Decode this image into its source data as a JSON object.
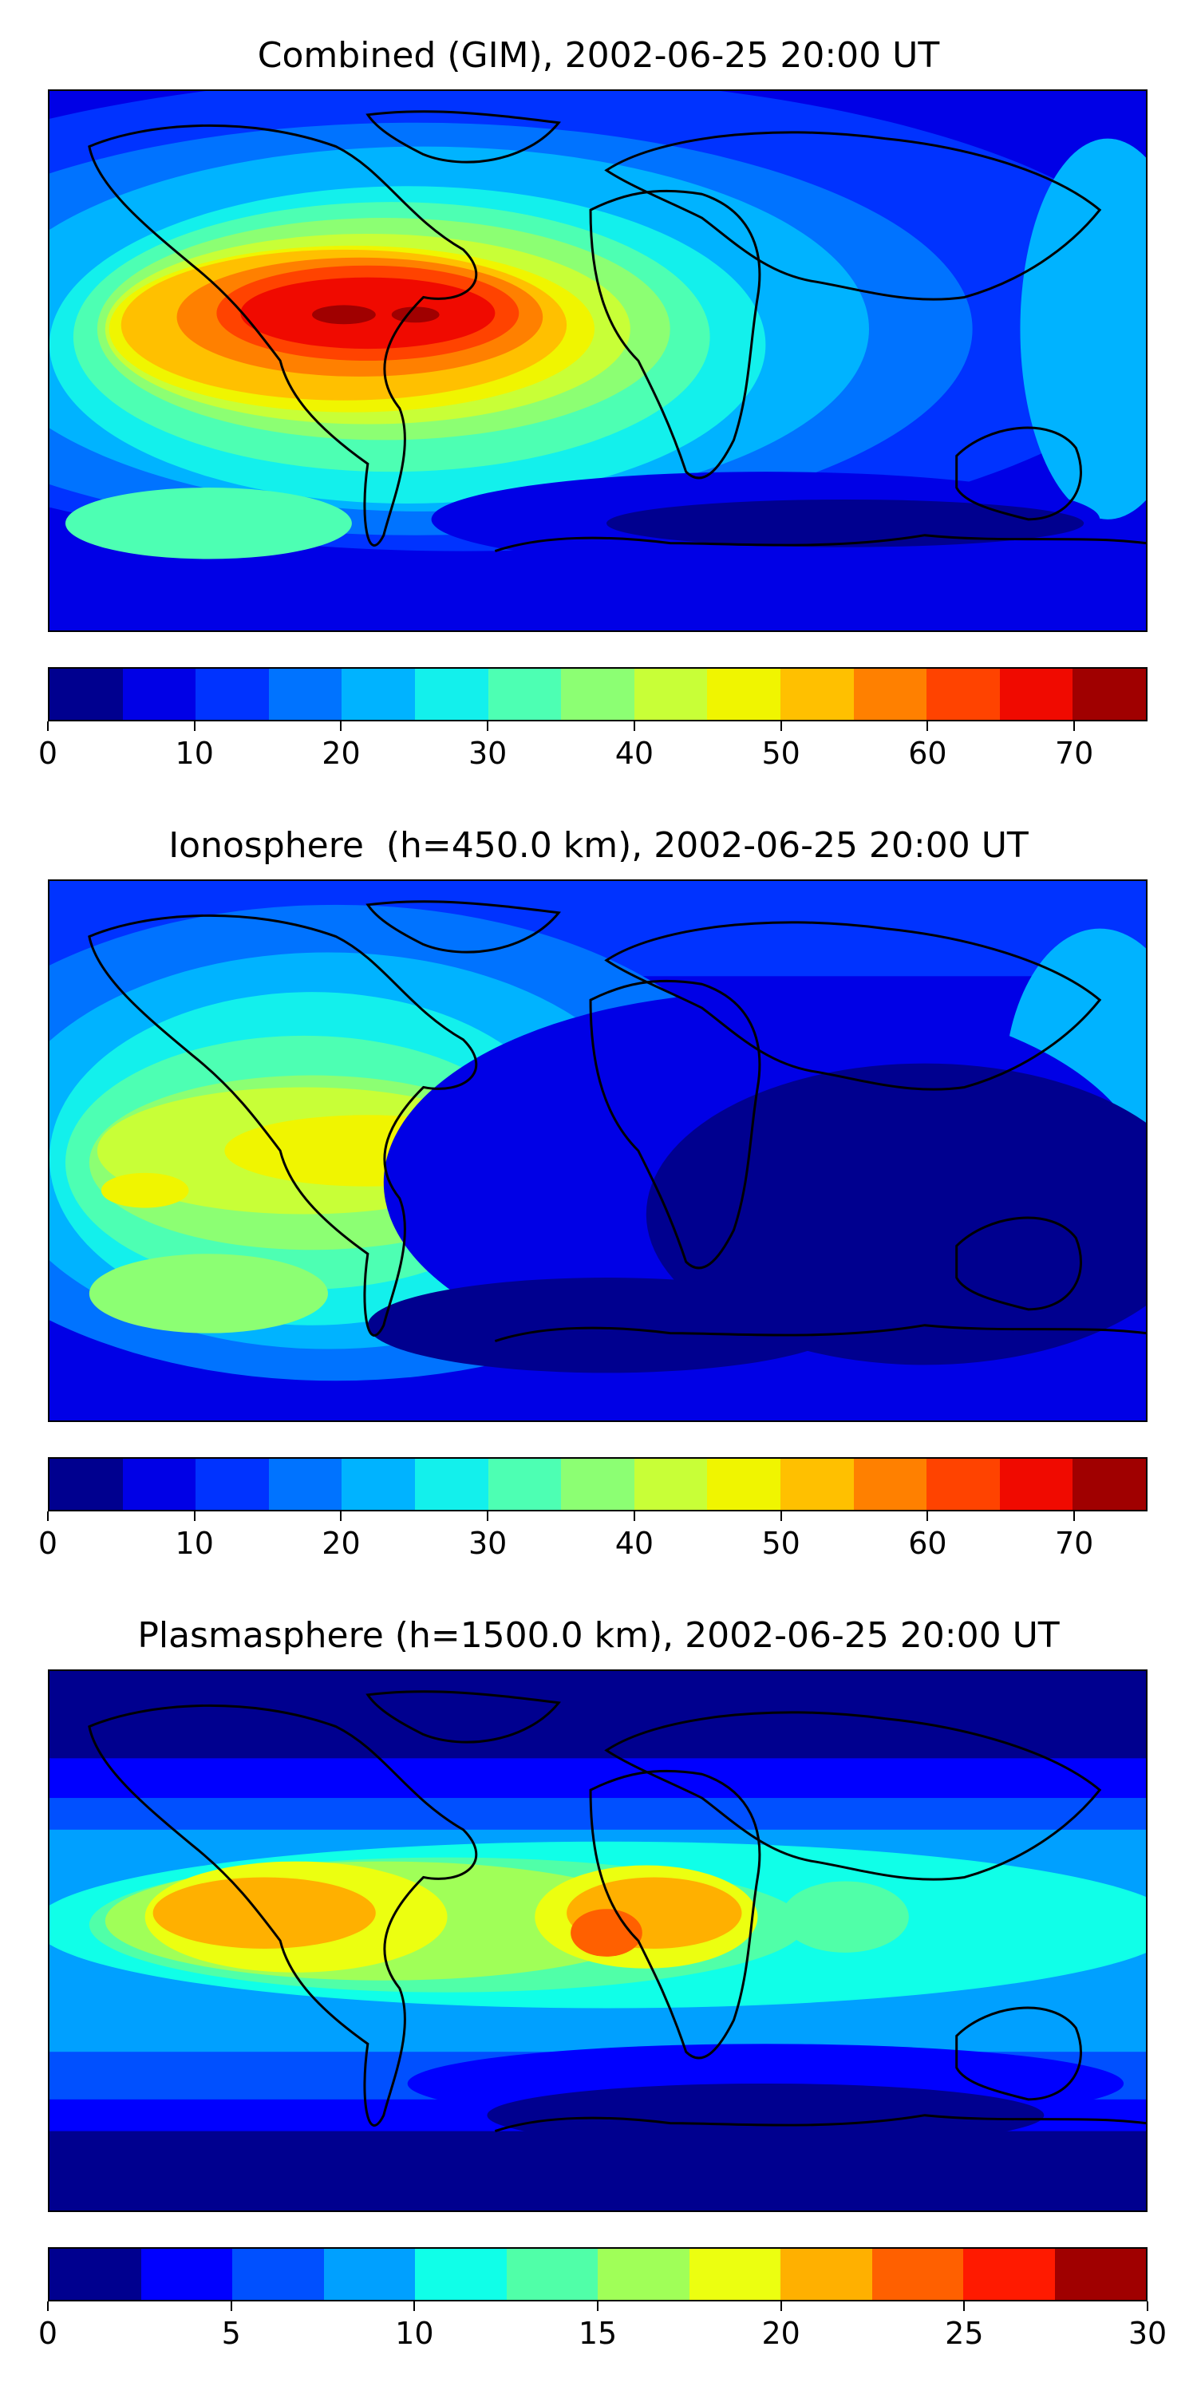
{
  "panels": [
    {
      "title": "Combined (GIM), 2002-06-25 20:00 UT",
      "colorbar": {
        "min": 0,
        "max": 75,
        "ticks": [
          "0",
          "10",
          "20",
          "30",
          "40",
          "50",
          "60",
          "70"
        ],
        "tick_values": [
          0,
          10,
          20,
          30,
          40,
          50,
          60,
          70
        ],
        "colors": [
          "#00008f",
          "#0000e6",
          "#0033ff",
          "#0073ff",
          "#00b3ff",
          "#13f0ec",
          "#4dffb3",
          "#8cff73",
          "#c8ff37",
          "#f0f500",
          "#ffc000",
          "#ff8000",
          "#ff4300",
          "#f00a00",
          "#a00000"
        ]
      }
    },
    {
      "title": "Ionosphere  (h=450.0 km), 2002-06-25 20:00 UT",
      "colorbar": {
        "min": 0,
        "max": 75,
        "ticks": [
          "0",
          "10",
          "20",
          "30",
          "40",
          "50",
          "60",
          "70"
        ],
        "tick_values": [
          0,
          10,
          20,
          30,
          40,
          50,
          60,
          70
        ],
        "colors": [
          "#00008f",
          "#0000e6",
          "#0033ff",
          "#0073ff",
          "#00b3ff",
          "#13f0ec",
          "#4dffb3",
          "#8cff73",
          "#c8ff37",
          "#f0f500",
          "#ffc000",
          "#ff8000",
          "#ff4300",
          "#f00a00",
          "#a00000"
        ]
      }
    },
    {
      "title": "Plasmasphere (h=1500.0 km), 2002-06-25 20:00 UT",
      "colorbar": {
        "min": 0,
        "max": 30,
        "ticks": [
          "0",
          "5",
          "10",
          "15",
          "20",
          "25",
          "30"
        ],
        "tick_values": [
          0,
          5,
          10,
          15,
          20,
          25,
          30
        ],
        "colors": [
          "#00008f",
          "#0000ff",
          "#0050ff",
          "#00a0ff",
          "#10ffe8",
          "#50ffa8",
          "#a0ff58",
          "#ecff10",
          "#ffb000",
          "#ff6000",
          "#ff1a00",
          "#a00000"
        ]
      }
    }
  ]
}
